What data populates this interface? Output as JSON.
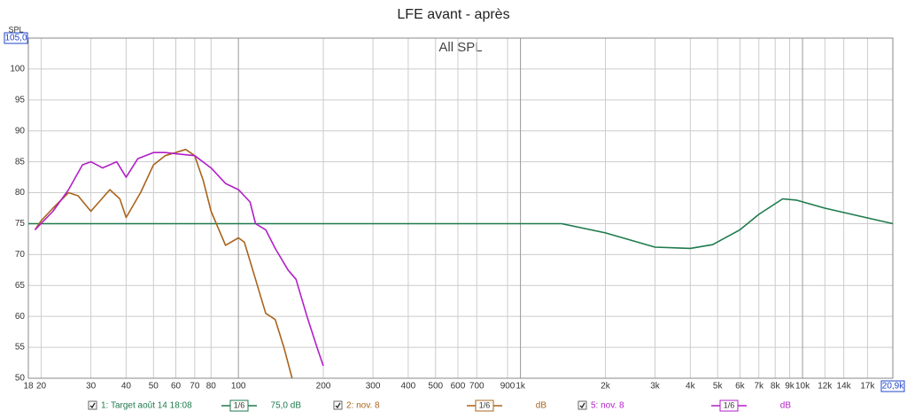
{
  "chart_data": {
    "type": "line",
    "title": "LFE avant - après",
    "subtitle": "All SPL",
    "y_label": "SPL",
    "xscale": "log",
    "grid": true,
    "xlim": [
      18,
      20900
    ],
    "ylim": [
      50,
      105
    ],
    "xticks": [
      18,
      20,
      30,
      40,
      50,
      60,
      70,
      80,
      100,
      200,
      300,
      400,
      500,
      600,
      700,
      900,
      {
        "value": 1000,
        "label": "1k"
      },
      {
        "value": 2000,
        "label": "2k"
      },
      {
        "value": 3000,
        "label": "3k"
      },
      {
        "value": 4000,
        "label": "4k"
      },
      {
        "value": 5000,
        "label": "5k"
      },
      {
        "value": 6000,
        "label": "6k"
      },
      {
        "value": 7000,
        "label": "7k"
      },
      {
        "value": 8000,
        "label": "8k"
      },
      {
        "value": 9000,
        "label": "9k"
      },
      {
        "value": 10000,
        "label": "10k"
      },
      {
        "value": 12000,
        "label": "12k"
      },
      {
        "value": 14000,
        "label": "14k"
      },
      {
        "value": 17000,
        "label": "17k"
      },
      {
        "value": 20900,
        "label": "20,9k"
      }
    ],
    "yticks": [
      50,
      55,
      60,
      65,
      70,
      75,
      80,
      85,
      90,
      95,
      100,
      {
        "value": 105,
        "label": "105,0"
      }
    ],
    "series": [
      {
        "name": "1: Target août 14 18:08",
        "color": "#1e7a4c",
        "smoothing": "1/6",
        "level": "75,0 dB",
        "x": [
          18,
          1400,
          2000,
          3000,
          4000,
          4800,
          6000,
          7000,
          8500,
          9500,
          12000,
          16000,
          20900
        ],
        "values": [
          75,
          75,
          73.5,
          71.2,
          71,
          71.6,
          74,
          76.5,
          79,
          78.8,
          77.5,
          76.2,
          75
        ]
      },
      {
        "name": "2: nov. 8",
        "color": "#a8641c",
        "smoothing": "1/6",
        "level": "dB",
        "x": [
          19,
          20,
          22,
          25,
          27,
          30,
          35,
          38,
          40,
          45,
          50,
          55,
          60,
          65,
          70,
          75,
          80,
          90,
          100,
          105,
          115,
          125,
          135,
          145,
          155
        ],
        "values": [
          74,
          75.5,
          77.5,
          80,
          79.5,
          77,
          80.5,
          79,
          76,
          80,
          84.5,
          86,
          86.5,
          87,
          86,
          82,
          77,
          71.5,
          72.7,
          72,
          66,
          60.5,
          59.5,
          55,
          50
        ]
      },
      {
        "name": "5: nov. 8",
        "color": "#b21fc8",
        "smoothing": "1/6",
        "level": "dB",
        "x": [
          19,
          22,
          25,
          28,
          30,
          33,
          37,
          40,
          44,
          50,
          55,
          60,
          70,
          80,
          90,
          100,
          110,
          115,
          125,
          135,
          150,
          160,
          175,
          190,
          200
        ],
        "values": [
          74,
          77,
          80.5,
          84.5,
          85,
          84,
          85,
          82.5,
          85.5,
          86.5,
          86.5,
          86.3,
          86,
          84,
          81.5,
          80.5,
          78.5,
          75,
          74,
          71,
          67.5,
          66,
          60,
          55,
          52
        ]
      }
    ]
  }
}
